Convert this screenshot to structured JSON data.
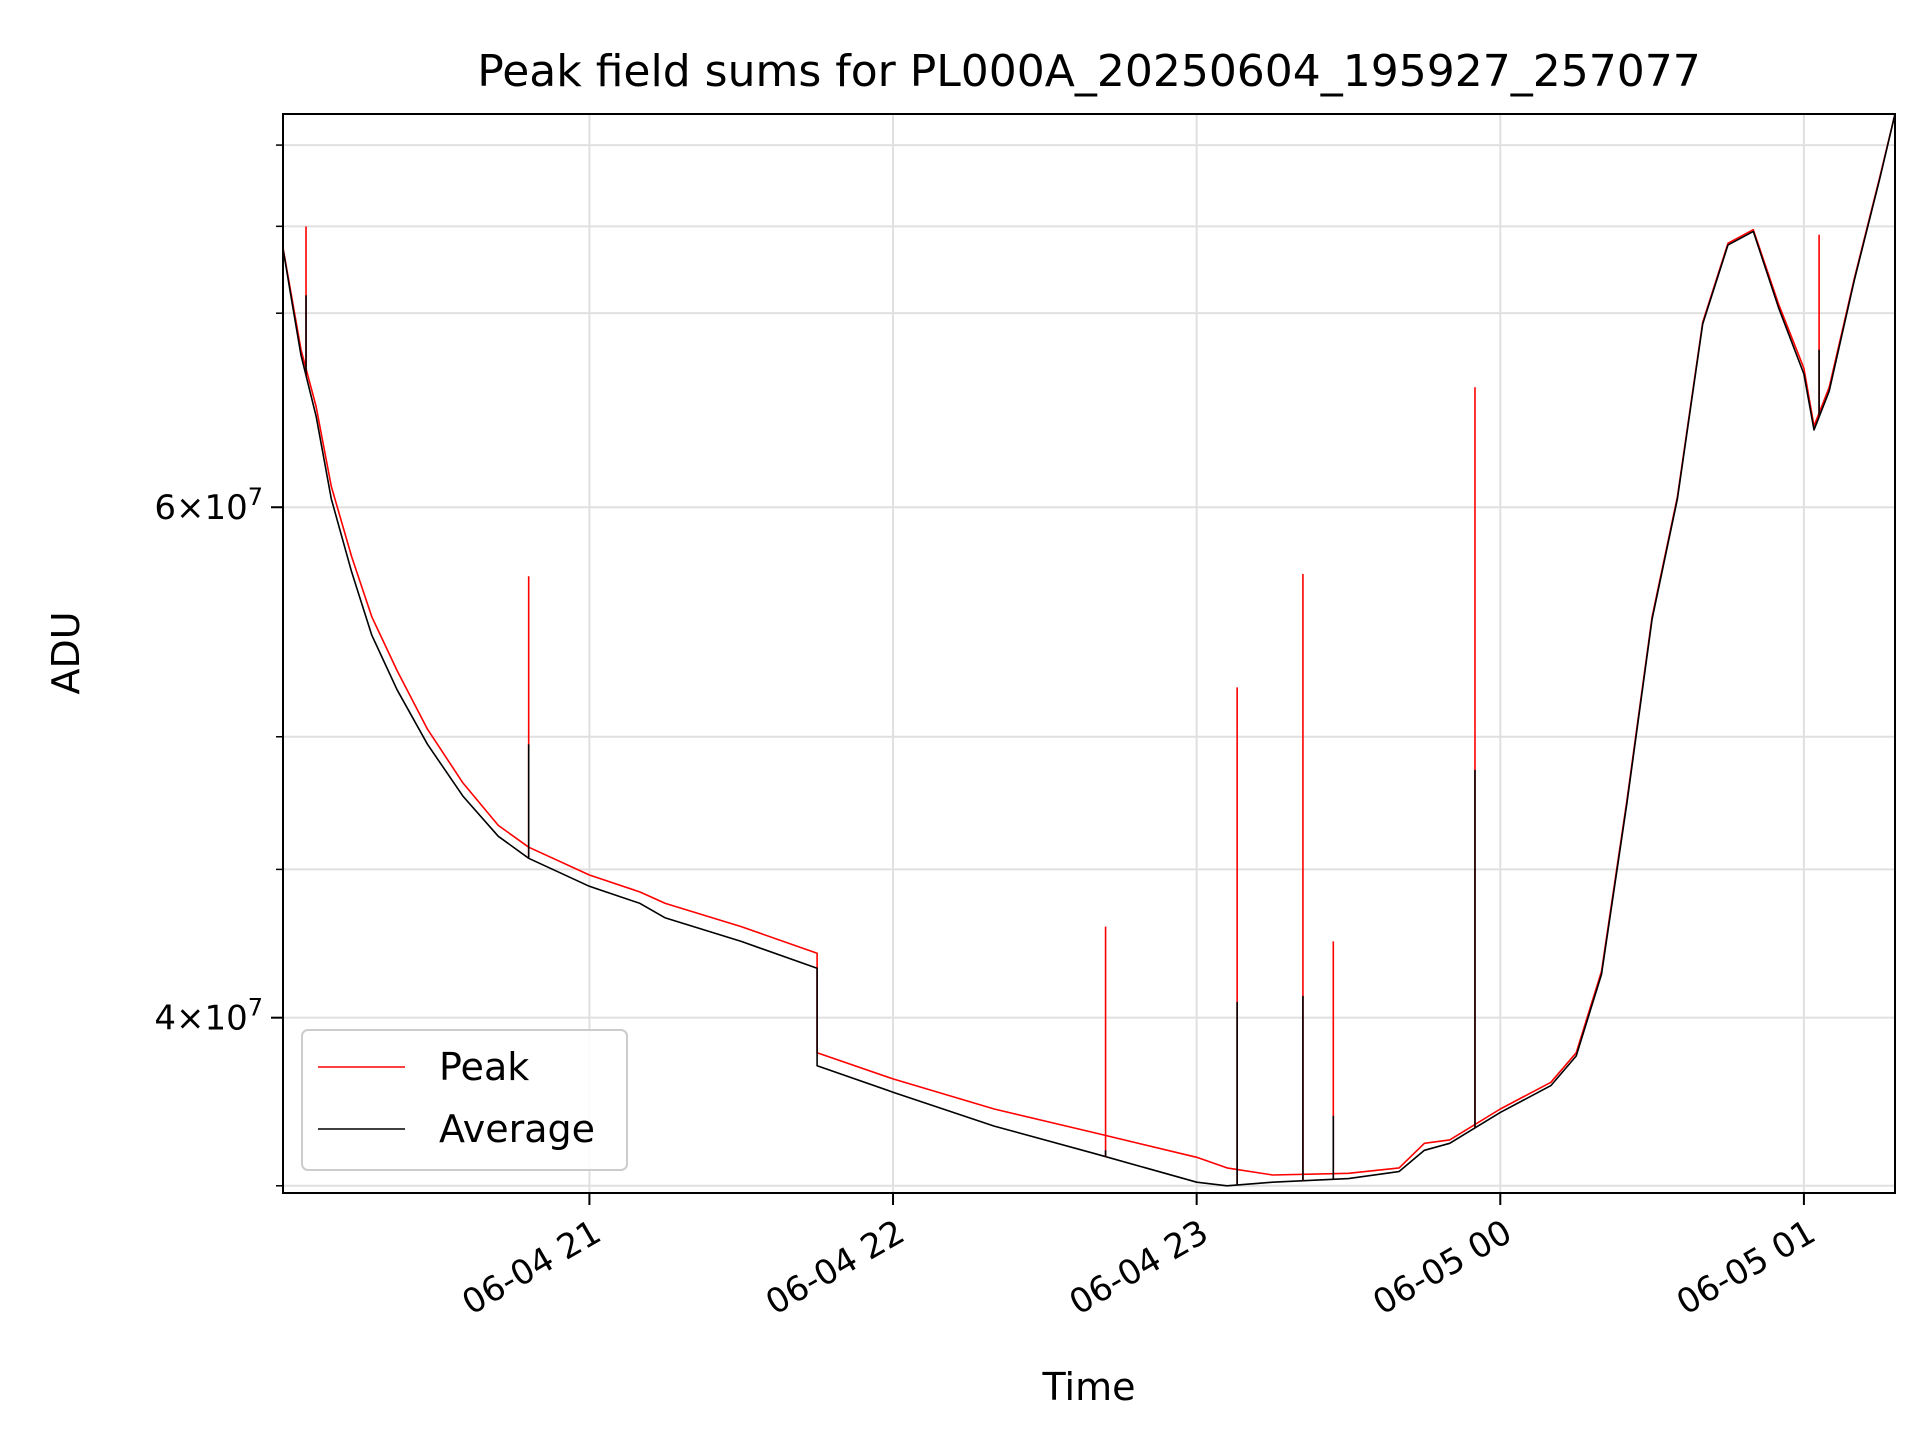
{
  "chart_data": {
    "type": "line",
    "title": "Peak field sums for PL000A_20250604_195927_257077",
    "xlabel": "Time",
    "ylabel": "ADU",
    "y_scale": "log",
    "ylim": [
      34800000,
      82000000
    ],
    "xlim": [
      "2025-06-04 19:59:27",
      "2025-06-05 01:18:00"
    ],
    "grid": true,
    "legend_position": "lower-left",
    "x_ticks": [
      {
        "t": "2025-06-04 21:00",
        "label": "06-04 21"
      },
      {
        "t": "2025-06-04 22:00",
        "label": "06-04 22"
      },
      {
        "t": "2025-06-04 23:00",
        "label": "06-04 23"
      },
      {
        "t": "2025-06-05 00:00",
        "label": "06-05 00"
      },
      {
        "t": "2025-06-05 01:00",
        "label": "06-05 01"
      }
    ],
    "y_ticks": [
      {
        "value": 40000000,
        "mantissa": "4",
        "exponent": "7"
      },
      {
        "value": 60000000,
        "mantissa": "6",
        "exponent": "7"
      }
    ],
    "y_minor_ticks": [
      35000000,
      45000000,
      50000000,
      70000000,
      75000000,
      80000000
    ],
    "series": [
      {
        "name": "Peak",
        "color": "#ff0000",
        "points": [
          [
            "2025-06-04 19:59",
            74500000
          ],
          [
            "2025-06-04 20:01",
            71200000
          ],
          [
            "2025-06-04 20:03",
            68000000
          ],
          [
            "2025-06-04 20:06",
            65000000
          ],
          [
            "2025-06-04 20:09",
            61000000
          ],
          [
            "2025-06-04 20:13",
            57700000
          ],
          [
            "2025-06-04 20:17",
            55000000
          ],
          [
            "2025-06-04 20:22",
            52700000
          ],
          [
            "2025-06-04 20:28",
            50300000
          ],
          [
            "2025-06-04 20:35",
            48200000
          ],
          [
            "2025-06-04 20:42",
            46600000
          ],
          [
            "2025-06-04 20:48",
            45800000
          ],
          [
            "2025-06-04 21:00",
            44800000
          ],
          [
            "2025-06-04 21:10",
            44200000
          ],
          [
            "2025-06-04 21:15",
            43800000
          ],
          [
            "2025-06-04 21:30",
            43000000
          ],
          [
            "2025-06-04 21:45",
            42100000
          ],
          [
            "2025-06-04 21:45",
            38900000
          ],
          [
            "2025-06-04 22:00",
            38100000
          ],
          [
            "2025-06-04 22:20",
            37200000
          ],
          [
            "2025-06-04 22:40",
            36500000
          ],
          [
            "2025-06-04 23:00",
            35800000
          ],
          [
            "2025-06-04 23:06",
            35500000
          ],
          [
            "2025-06-04 23:15",
            35300000
          ],
          [
            "2025-06-04 23:30",
            35350000
          ],
          [
            "2025-06-04 23:40",
            35500000
          ],
          [
            "2025-06-04 23:45",
            36200000
          ],
          [
            "2025-06-04 23:50",
            36300000
          ],
          [
            "2025-06-05 00:00",
            37200000
          ],
          [
            "2025-06-05 00:10",
            38000000
          ],
          [
            "2025-06-05 00:15",
            38900000
          ],
          [
            "2025-06-05 00:20",
            41500000
          ],
          [
            "2025-06-05 00:25",
            47500000
          ],
          [
            "2025-06-05 00:30",
            55000000
          ],
          [
            "2025-06-05 00:35",
            60500000
          ],
          [
            "2025-06-05 00:40",
            69500000
          ],
          [
            "2025-06-05 00:45",
            74000000
          ],
          [
            "2025-06-05 00:50",
            74800000
          ],
          [
            "2025-06-05 00:55",
            70500000
          ],
          [
            "2025-06-05 01:00",
            67000000
          ],
          [
            "2025-06-05 01:02",
            64000000
          ],
          [
            "2025-06-05 01:05",
            66000000
          ],
          [
            "2025-06-05 01:10",
            72000000
          ],
          [
            "2025-06-05 01:15",
            78000000
          ],
          [
            "2025-06-05 01:18",
            82000000
          ]
        ]
      },
      {
        "name": "Average",
        "color": "#000000",
        "points": [
          [
            "2025-06-04 19:59",
            74500000
          ],
          [
            "2025-06-04 20:01",
            71000000
          ],
          [
            "2025-06-04 20:03",
            67700000
          ],
          [
            "2025-06-04 20:06",
            64500000
          ],
          [
            "2025-06-04 20:09",
            60400000
          ],
          [
            "2025-06-04 20:13",
            57000000
          ],
          [
            "2025-06-04 20:17",
            54200000
          ],
          [
            "2025-06-04 20:22",
            51900000
          ],
          [
            "2025-06-04 20:28",
            49700000
          ],
          [
            "2025-06-04 20:35",
            47700000
          ],
          [
            "2025-06-04 20:42",
            46200000
          ],
          [
            "2025-06-04 20:48",
            45400000
          ],
          [
            "2025-06-04 21:00",
            44400000
          ],
          [
            "2025-06-04 21:10",
            43800000
          ],
          [
            "2025-06-04 21:15",
            43300000
          ],
          [
            "2025-06-04 21:30",
            42500000
          ],
          [
            "2025-06-04 21:45",
            41600000
          ],
          [
            "2025-06-04 21:45",
            38500000
          ],
          [
            "2025-06-04 22:00",
            37700000
          ],
          [
            "2025-06-04 22:20",
            36700000
          ],
          [
            "2025-06-04 22:40",
            35900000
          ],
          [
            "2025-06-04 23:00",
            35100000
          ],
          [
            "2025-06-04 23:06",
            35000000
          ],
          [
            "2025-06-04 23:15",
            35100000
          ],
          [
            "2025-06-04 23:30",
            35200000
          ],
          [
            "2025-06-04 23:40",
            35400000
          ],
          [
            "2025-06-04 23:45",
            36000000
          ],
          [
            "2025-06-04 23:50",
            36200000
          ],
          [
            "2025-06-05 00:00",
            37100000
          ],
          [
            "2025-06-05 00:10",
            37900000
          ],
          [
            "2025-06-05 00:15",
            38800000
          ],
          [
            "2025-06-05 00:20",
            41400000
          ],
          [
            "2025-06-05 00:25",
            47400000
          ],
          [
            "2025-06-05 00:30",
            54900000
          ],
          [
            "2025-06-05 00:35",
            60400000
          ],
          [
            "2025-06-05 00:40",
            69400000
          ],
          [
            "2025-06-05 00:45",
            73900000
          ],
          [
            "2025-06-05 00:50",
            74700000
          ],
          [
            "2025-06-05 00:55",
            70300000
          ],
          [
            "2025-06-05 01:00",
            66700000
          ],
          [
            "2025-06-05 01:02",
            63800000
          ],
          [
            "2025-06-05 01:05",
            65800000
          ],
          [
            "2025-06-05 01:10",
            71900000
          ],
          [
            "2025-06-05 01:15",
            77900000
          ],
          [
            "2025-06-05 01:18",
            82000000
          ]
        ]
      }
    ],
    "spikes": [
      {
        "t": "2025-06-04 20:04",
        "peak": 75000000,
        "average": 71000000
      },
      {
        "t": "2025-06-04 20:48",
        "peak": 56800000,
        "average": 49700000
      },
      {
        "t": "2025-06-04 22:42",
        "peak": 43000000,
        "average": 36000000
      },
      {
        "t": "2025-06-04 23:08",
        "peak": 52000000,
        "average": 40500000
      },
      {
        "t": "2025-06-04 23:21",
        "peak": 56900000,
        "average": 40700000
      },
      {
        "t": "2025-06-04 23:27",
        "peak": 42500000,
        "average": 37000000
      },
      {
        "t": "2025-06-04 23:55",
        "peak": 66000000,
        "average": 48700000
      },
      {
        "t": "2025-06-05 01:03",
        "peak": 74500000,
        "average": 68000000
      }
    ]
  }
}
